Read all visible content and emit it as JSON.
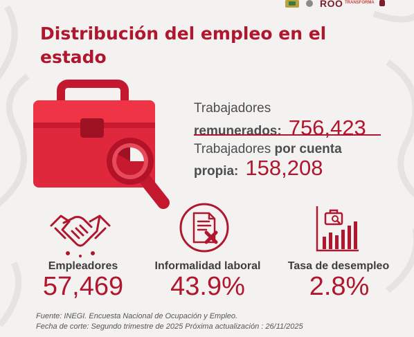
{
  "header": {
    "logo_text": "ROO",
    "logo_subtext": "TRANSFORMA"
  },
  "title": "Distribución del empleo en el estado",
  "stats": {
    "remunerados": {
      "label_line1": "Trabajadores",
      "label_line2": "remunerados:",
      "value": "756,423"
    },
    "cuenta_propia": {
      "label_line1_a": "Trabajadores ",
      "label_line1_b": "por cuenta",
      "label_line2": "propia:",
      "value": "158,208"
    }
  },
  "columns": [
    {
      "label": "Empleadores",
      "value": "57,469",
      "icon": "handshake-icon"
    },
    {
      "label": "Informalidad laboral",
      "value": "43.9%",
      "icon": "document-x-icon"
    },
    {
      "label": "Tasa de desempleo",
      "value": "2.8%",
      "icon": "briefcase-chart-icon"
    }
  ],
  "footer": {
    "source": "Fuente: INEGI. Encuesta Nacional de Ocupación y Empleo.",
    "cutoff": "Fecha de corte: Segundo trimestre de 2025  Próxima actualización : 26/11/2025"
  },
  "colors": {
    "accent": "#b0162e",
    "background": "#f3f2f1",
    "text": "#4d4d4d"
  }
}
